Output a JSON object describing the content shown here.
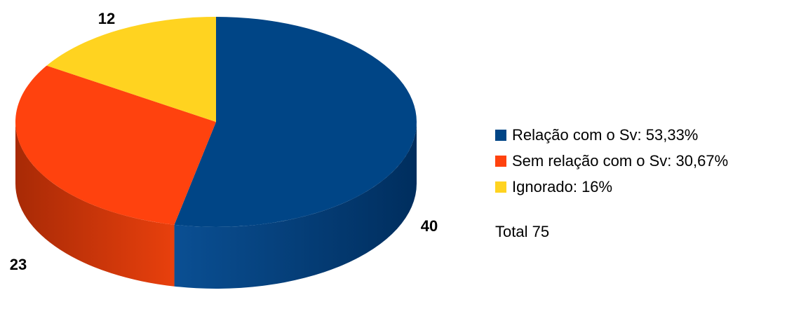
{
  "chart_data": {
    "type": "pie",
    "style": "3d",
    "slices": [
      {
        "label": "Relação com o Sv",
        "value": 40,
        "percent": "53,33%",
        "color": "#004586"
      },
      {
        "label": "Sem relação com o Sv",
        "value": 23,
        "percent": "30,67%",
        "color": "#FF420E"
      },
      {
        "label": "Ignorado",
        "value": 12,
        "percent": "16%",
        "color": "#FFD320"
      }
    ],
    "legend": {
      "position": "right",
      "items": [
        "Relação com o Sv: 53,33%",
        "Sem relação com o Sv: 30,67%",
        "Ignorado: 16%"
      ]
    },
    "total_text": "Total 75"
  }
}
